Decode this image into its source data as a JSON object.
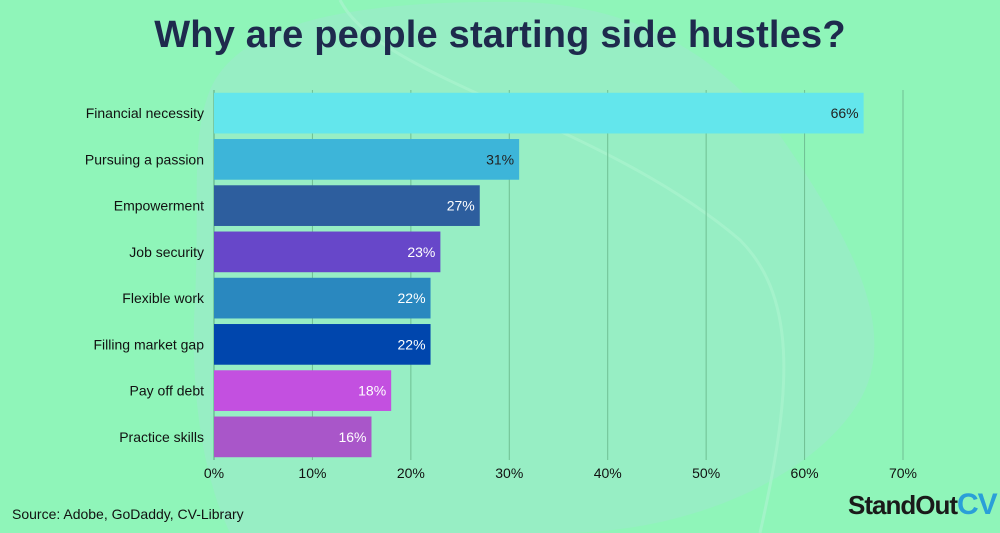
{
  "title": "Why are people starting side hustles?",
  "source": "Source: Adobe, GoDaddy, CV-Library",
  "logo": {
    "text_main": "StandOut",
    "text_accent": "CV",
    "accent_color": "#2a9fd8"
  },
  "colors": {
    "background": "#8ff5b9",
    "blob": "#97eec4",
    "grid": "#6fbf93"
  },
  "chart_data": {
    "type": "bar",
    "orientation": "horizontal",
    "title": "Why are people starting side hustles?",
    "categories": [
      "Financial necessity",
      "Pursuing a passion",
      "Empowerment",
      "Job security",
      "Flexible work",
      "Filling market gap",
      "Pay off debt",
      "Practice skills"
    ],
    "values": [
      66,
      31,
      27,
      23,
      22,
      22,
      18,
      16
    ],
    "data_labels": [
      "66%",
      "31%",
      "27%",
      "23%",
      "22%",
      "22%",
      "18%",
      "16%"
    ],
    "bar_colors": [
      "#63e6ec",
      "#3db5d9",
      "#2d5e9e",
      "#6747c9",
      "#2a88bf",
      "#0046ad",
      "#c350e0",
      "#a956c9"
    ],
    "label_colors": [
      "#222222",
      "#222222",
      "#ffffff",
      "#ffffff",
      "#ffffff",
      "#ffffff",
      "#ffffff",
      "#ffffff"
    ],
    "x_ticks": [
      0,
      10,
      20,
      30,
      40,
      50,
      60,
      70
    ],
    "x_tick_labels": [
      "0%",
      "10%",
      "20%",
      "30%",
      "40%",
      "50%",
      "60%",
      "70%"
    ],
    "xlim": [
      0,
      70
    ],
    "grid": true,
    "legend": "none"
  }
}
